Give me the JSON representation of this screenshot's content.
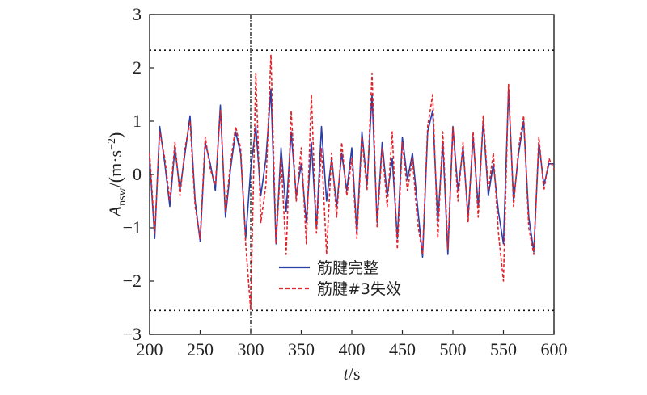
{
  "chart_data": {
    "type": "line",
    "xlabel_var": "t",
    "xlabel_unit": "/s",
    "ylabel_var": "A",
    "ylabel_sub": "nsw",
    "ylabel_unit_pre": "/(m·s",
    "ylabel_unit_exp": "−2",
    "ylabel_unit_post": ")",
    "xlim": [
      200,
      600
    ],
    "ylim": [
      -3,
      3
    ],
    "xticks": [
      "200",
      "250",
      "300",
      "350",
      "400",
      "450",
      "500",
      "550",
      "600"
    ],
    "yticks": [
      "−3",
      "−2",
      "−1",
      "0",
      "1",
      "2",
      "3"
    ],
    "grid": false,
    "legend_position": "lower-center",
    "reference_lines": {
      "upper_threshold": 2.33,
      "lower_threshold": -2.55,
      "failure_time": 300
    },
    "series": [
      {
        "name": "筋腱完整",
        "color": "#2b3fa8",
        "style": "solid",
        "x": [
          200,
          205,
          210,
          215,
          220,
          225,
          230,
          235,
          240,
          245,
          250,
          255,
          260,
          265,
          270,
          275,
          280,
          285,
          290,
          295,
          300,
          305,
          310,
          315,
          320,
          325,
          330,
          335,
          340,
          345,
          350,
          355,
          360,
          365,
          370,
          375,
          380,
          385,
          390,
          395,
          400,
          405,
          410,
          415,
          420,
          425,
          430,
          435,
          440,
          445,
          450,
          455,
          460,
          465,
          470,
          475,
          480,
          485,
          490,
          495,
          500,
          505,
          510,
          515,
          520,
          525,
          530,
          535,
          540,
          545,
          550,
          555,
          560,
          565,
          570,
          575,
          580,
          585,
          590,
          595,
          600
        ],
        "values": [
          0.3,
          -1.2,
          0.9,
          0.2,
          -0.6,
          0.5,
          -0.3,
          0.4,
          1.1,
          -0.5,
          -1.25,
          0.6,
          0.2,
          -0.3,
          1.3,
          -0.8,
          0.1,
          0.8,
          0.4,
          -1.2,
          0.1,
          0.9,
          -0.4,
          0.3,
          1.6,
          -1.3,
          0.5,
          -0.7,
          0.8,
          -0.4,
          0.2,
          -0.9,
          0.6,
          -1.0,
          0.9,
          -0.5,
          0.3,
          -0.6,
          0.4,
          -0.3,
          0.5,
          -1.1,
          0.8,
          -0.2,
          1.5,
          -0.9,
          0.6,
          -0.4,
          0.3,
          -1.2,
          0.7,
          -0.1,
          0.4,
          -0.6,
          -1.55,
          0.8,
          1.2,
          -0.9,
          0.6,
          -1.5,
          0.9,
          -0.3,
          0.5,
          -0.8,
          0.7,
          -0.6,
          1.0,
          -0.4,
          0.2,
          -0.7,
          -1.3,
          1.6,
          -0.5,
          0.4,
          1.0,
          -0.8,
          -1.45,
          0.6,
          -0.2,
          0.2,
          0.2
        ]
      },
      {
        "name": "筋腱#3失效",
        "color": "#e0242c",
        "style": "dashed",
        "x": [
          200,
          205,
          210,
          215,
          220,
          225,
          230,
          235,
          240,
          245,
          250,
          255,
          260,
          265,
          270,
          275,
          280,
          285,
          290,
          295,
          300,
          305,
          310,
          315,
          320,
          325,
          330,
          335,
          340,
          345,
          350,
          355,
          360,
          365,
          370,
          375,
          380,
          385,
          390,
          395,
          400,
          405,
          410,
          415,
          420,
          425,
          430,
          435,
          440,
          445,
          450,
          455,
          460,
          465,
          470,
          475,
          480,
          485,
          490,
          495,
          500,
          505,
          510,
          515,
          520,
          525,
          530,
          535,
          540,
          545,
          550,
          555,
          560,
          565,
          570,
          575,
          580,
          585,
          590,
          595,
          600
        ],
        "values": [
          0.4,
          -1.1,
          0.8,
          0.3,
          -0.5,
          0.6,
          -0.4,
          0.5,
          1.0,
          -0.6,
          -1.2,
          0.7,
          0.1,
          -0.2,
          1.2,
          -0.7,
          0.2,
          0.9,
          0.5,
          -1.3,
          -2.55,
          1.9,
          -0.9,
          -0.2,
          2.25,
          -1.3,
          0.3,
          -1.5,
          1.2,
          -0.5,
          0.5,
          -1.3,
          1.5,
          -1.1,
          0.5,
          -1.5,
          0.4,
          -0.8,
          0.6,
          -0.4,
          0.3,
          -1.2,
          0.7,
          -0.3,
          1.9,
          -1.0,
          0.5,
          -0.6,
          0.8,
          -1.4,
          0.6,
          -0.3,
          0.3,
          -0.9,
          -1.5,
          0.9,
          1.5,
          -1.2,
          0.8,
          -1.4,
          0.9,
          -0.5,
          0.6,
          -0.9,
          0.8,
          -0.8,
          1.1,
          -0.3,
          0.4,
          -1.1,
          -2.0,
          1.7,
          -0.6,
          0.5,
          1.1,
          -1.0,
          -1.5,
          0.7,
          -0.3,
          0.3,
          0.1
        ]
      }
    ]
  }
}
